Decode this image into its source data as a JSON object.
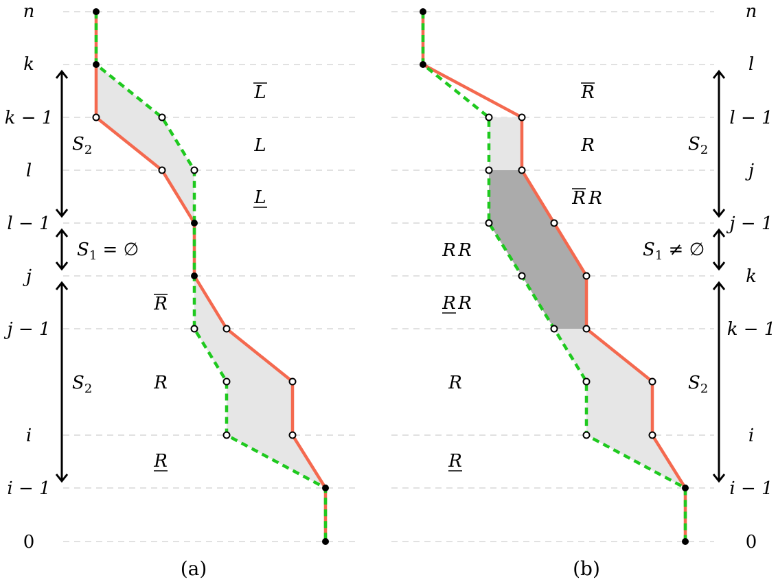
{
  "panel_a": {
    "caption": "(a)",
    "left_labels": [
      "n",
      "k",
      "k − 1",
      "l",
      "l − 1",
      "j",
      "j − 1",
      "i",
      "i − 1",
      "0"
    ],
    "set_labels": {
      "upper": "S",
      "upper_sub": "2",
      "middle": "S",
      "middle_sub": "1",
      "middle_rel": " = ∅",
      "lower": "S",
      "lower_sub": "2"
    },
    "region_labels": {
      "l_bar": "L",
      "l": "L",
      "l_under": "L",
      "r_bar": "R",
      "r": "R",
      "r_under": "R"
    }
  },
  "panel_b": {
    "caption": "(b)",
    "right_labels": [
      "n",
      "l",
      "l − 1",
      "j",
      "j − 1",
      "k",
      "k − 1",
      "i",
      "i − 1",
      "0"
    ],
    "set_labels": {
      "upper": "S",
      "upper_sub": "2",
      "middle": "S",
      "middle_sub": "1",
      "middle_rel": " ≠ ∅",
      "lower": "S",
      "lower_sub": "2"
    },
    "region_labels": {
      "r_bar": "R",
      "r": "R",
      "rbar_r_a": "R",
      "rbar_r_b": "R",
      "rr_a": "R",
      "rr_b": "R",
      "rund_r_a": "R",
      "rund_r_b": "R",
      "r2": "R",
      "r_under": "R"
    }
  },
  "colors": {
    "path_a": "#f4694f",
    "path_b": "#1fc91f",
    "region_light": "#e6e6e6",
    "region_dark": "#ababab"
  }
}
